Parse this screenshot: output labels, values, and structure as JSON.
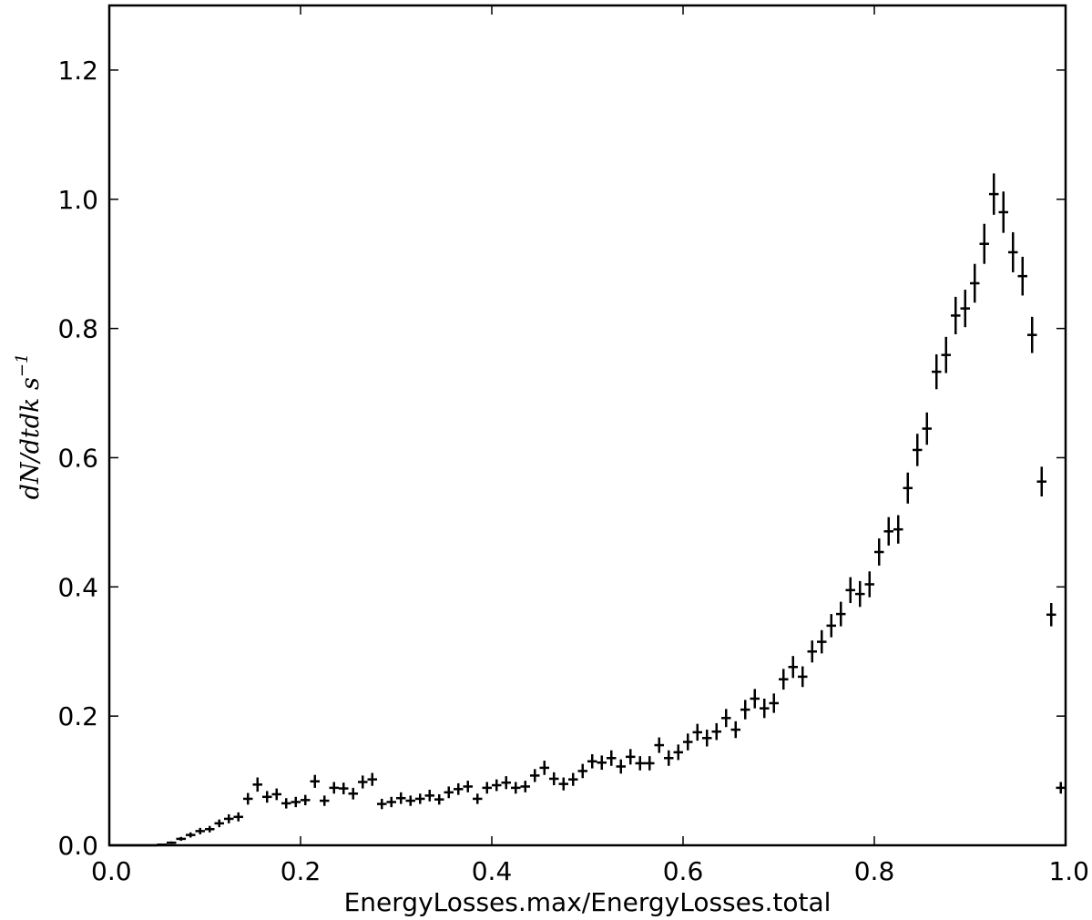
{
  "chart_data": {
    "type": "scatter",
    "xlabel": "EnergyLosses.max/EnergyLosses.total",
    "ylabel": "dN/dtdk  s",
    "ylabel_superscript": "−1",
    "xlim": [
      0.0,
      1.0
    ],
    "ylim": [
      0.0,
      1.3
    ],
    "x_ticks": [
      "0.0",
      "0.2",
      "0.4",
      "0.6",
      "0.8",
      "1.0"
    ],
    "y_ticks": [
      "0.0",
      "0.2",
      "0.4",
      "0.6",
      "0.8",
      "1.0",
      "1.2"
    ],
    "bin_width": 0.01,
    "grid": false,
    "marker_color": "#000000",
    "series": [
      {
        "x": [
          0.005,
          0.015,
          0.025,
          0.035,
          0.045,
          0.055,
          0.065,
          0.075,
          0.085,
          0.095,
          0.105,
          0.115,
          0.125,
          0.135,
          0.145,
          0.155,
          0.165,
          0.175,
          0.185,
          0.195,
          0.205,
          0.215,
          0.225,
          0.235,
          0.245,
          0.255,
          0.265,
          0.275,
          0.285,
          0.295,
          0.305,
          0.315,
          0.325,
          0.335,
          0.345,
          0.355,
          0.365,
          0.375,
          0.385,
          0.395,
          0.405,
          0.415,
          0.425,
          0.435,
          0.445,
          0.455,
          0.465,
          0.475,
          0.485,
          0.495,
          0.505,
          0.515,
          0.525,
          0.535,
          0.545,
          0.555,
          0.565,
          0.575,
          0.585,
          0.595,
          0.605,
          0.615,
          0.625,
          0.635,
          0.645,
          0.655,
          0.665,
          0.675,
          0.685,
          0.695,
          0.705,
          0.715,
          0.725,
          0.735,
          0.745,
          0.755,
          0.765,
          0.775,
          0.785,
          0.795,
          0.805,
          0.815,
          0.825,
          0.835,
          0.845,
          0.855,
          0.865,
          0.875,
          0.885,
          0.895,
          0.905,
          0.915,
          0.925,
          0.935,
          0.945,
          0.955,
          0.965,
          0.975,
          0.985,
          0.995
        ],
        "y": [
          0.0,
          0.0,
          0.0,
          0.0,
          0.0,
          0.001,
          0.004,
          0.01,
          0.016,
          0.022,
          0.025,
          0.034,
          0.041,
          0.044,
          0.072,
          0.094,
          0.075,
          0.079,
          0.065,
          0.067,
          0.07,
          0.099,
          0.069,
          0.089,
          0.088,
          0.08,
          0.098,
          0.102,
          0.064,
          0.067,
          0.073,
          0.069,
          0.072,
          0.077,
          0.071,
          0.082,
          0.087,
          0.091,
          0.072,
          0.089,
          0.093,
          0.097,
          0.089,
          0.091,
          0.108,
          0.12,
          0.103,
          0.095,
          0.102,
          0.115,
          0.13,
          0.128,
          0.135,
          0.122,
          0.137,
          0.127,
          0.127,
          0.155,
          0.135,
          0.144,
          0.16,
          0.175,
          0.166,
          0.176,
          0.197,
          0.179,
          0.21,
          0.227,
          0.212,
          0.22,
          0.257,
          0.276,
          0.261,
          0.3,
          0.315,
          0.34,
          0.358,
          0.395,
          0.389,
          0.404,
          0.454,
          0.486,
          0.489,
          0.553,
          0.612,
          0.645,
          0.733,
          0.759,
          0.82,
          0.831,
          0.87,
          0.931,
          1.008,
          0.98,
          0.918,
          0.881,
          0.79,
          0.563,
          0.357,
          0.089
        ],
        "yerr": [
          0.0,
          0.0,
          0.0,
          0.0,
          0.0,
          0.001,
          0.002,
          0.003,
          0.004,
          0.005,
          0.005,
          0.006,
          0.007,
          0.007,
          0.009,
          0.011,
          0.009,
          0.009,
          0.008,
          0.008,
          0.008,
          0.01,
          0.008,
          0.009,
          0.009,
          0.009,
          0.01,
          0.01,
          0.008,
          0.008,
          0.009,
          0.008,
          0.008,
          0.009,
          0.008,
          0.009,
          0.009,
          0.009,
          0.008,
          0.009,
          0.009,
          0.01,
          0.009,
          0.009,
          0.01,
          0.011,
          0.01,
          0.01,
          0.01,
          0.011,
          0.011,
          0.011,
          0.012,
          0.011,
          0.012,
          0.011,
          0.011,
          0.012,
          0.012,
          0.012,
          0.013,
          0.013,
          0.013,
          0.013,
          0.014,
          0.013,
          0.015,
          0.015,
          0.015,
          0.015,
          0.016,
          0.017,
          0.016,
          0.017,
          0.018,
          0.018,
          0.019,
          0.02,
          0.02,
          0.02,
          0.021,
          0.022,
          0.022,
          0.024,
          0.025,
          0.025,
          0.027,
          0.028,
          0.029,
          0.029,
          0.03,
          0.031,
          0.032,
          0.032,
          0.031,
          0.03,
          0.028,
          0.023,
          0.018,
          0.009
        ]
      }
    ]
  }
}
